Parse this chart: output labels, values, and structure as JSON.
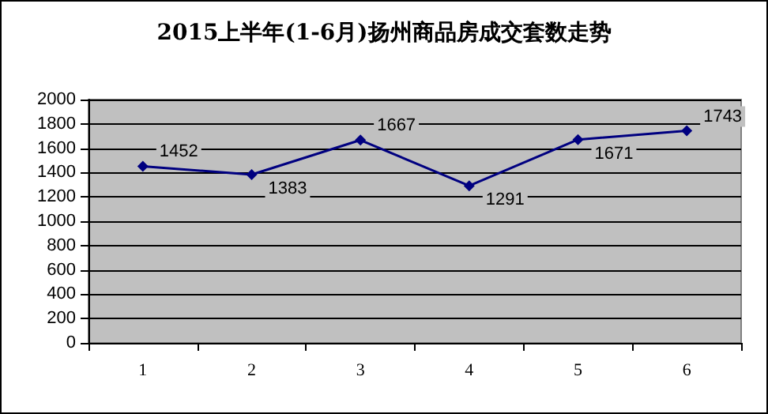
{
  "chart_data": {
    "type": "line",
    "title": "2015上半年(1-6月)扬州商品房成交套数走势",
    "categories": [
      "1",
      "2",
      "3",
      "4",
      "5",
      "6"
    ],
    "series": [
      {
        "color": "#000080",
        "values": [
          1452,
          1383,
          1667,
          1291,
          1671,
          1743
        ]
      }
    ],
    "ylim": [
      0,
      2000
    ],
    "yticks": [
      0,
      200,
      400,
      600,
      800,
      1000,
      1200,
      1400,
      1600,
      1800,
      2000
    ],
    "grid": "y",
    "marker": "diamond",
    "line_style": "solid",
    "data_labels": true
  }
}
